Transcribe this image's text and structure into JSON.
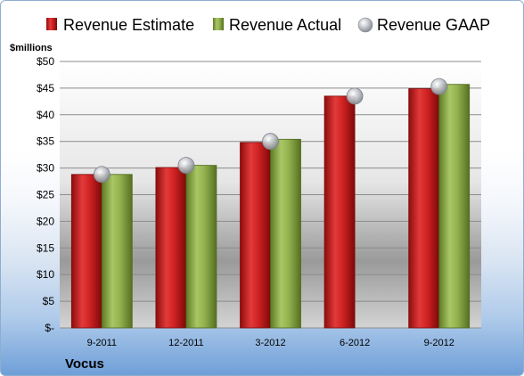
{
  "chart_data": {
    "type": "bar",
    "unit_label": "$millions",
    "brand": "Vocus",
    "categories": [
      "9-2011",
      "12-2011",
      "3-2012",
      "6-2012",
      "9-2012"
    ],
    "series": [
      {
        "name": "Revenue Estimate",
        "type": "bar",
        "color": "#cc1f1f",
        "values": [
          28.8,
          30.1,
          34.8,
          43.5,
          44.9
        ]
      },
      {
        "name": "Revenue Actual",
        "type": "bar",
        "color": "#8fae4a",
        "values": [
          28.8,
          30.5,
          35.4,
          null,
          45.7
        ]
      },
      {
        "name": "Revenue GAAP",
        "type": "marker",
        "color": "#b8bcc4",
        "values": [
          28.8,
          30.5,
          35.0,
          43.5,
          45.3
        ]
      }
    ],
    "y_ticks": [
      "$-",
      "$5",
      "$10",
      "$15",
      "$20",
      "$25",
      "$30",
      "$35",
      "$40",
      "$45",
      "$50"
    ],
    "ylim": [
      0,
      50
    ],
    "grid": true,
    "legend_position": "top"
  }
}
